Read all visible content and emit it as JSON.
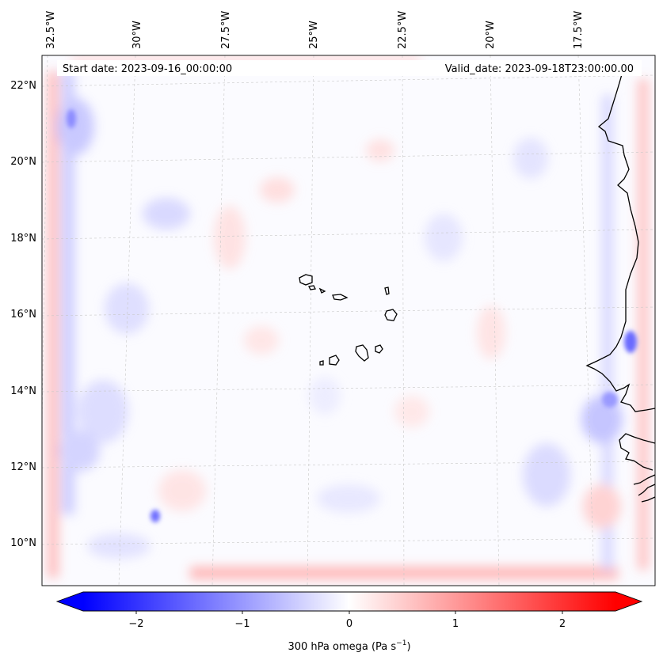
{
  "header": {
    "start_date": "Start date: 2023-09-16_00:00:00",
    "valid_date": "Valid_date: 2023-09-18T23:00:00.00"
  },
  "axes": {
    "lon_labels": [
      "32.5°W",
      "30°W",
      "27.5°W",
      "25°W",
      "22.5°W",
      "20°W",
      "17.5°W"
    ],
    "lat_labels": [
      "22°N",
      "20°N",
      "18°N",
      "16°N",
      "14°N",
      "12°N",
      "10°N"
    ]
  },
  "colorbar": {
    "ticks": [
      "−2",
      "−1",
      "0",
      "1",
      "2"
    ],
    "label_main": "300 hPa omega (Pa s",
    "label_sup": "−1",
    "label_close": ")",
    "range": [
      -2.6,
      2.6
    ],
    "colors": {
      "negative": "#0000ff",
      "zero": "#ffffff",
      "positive": "#ff0000"
    }
  },
  "map": {
    "variable": "300 hPa omega",
    "units": "Pa s^-1"
  }
}
